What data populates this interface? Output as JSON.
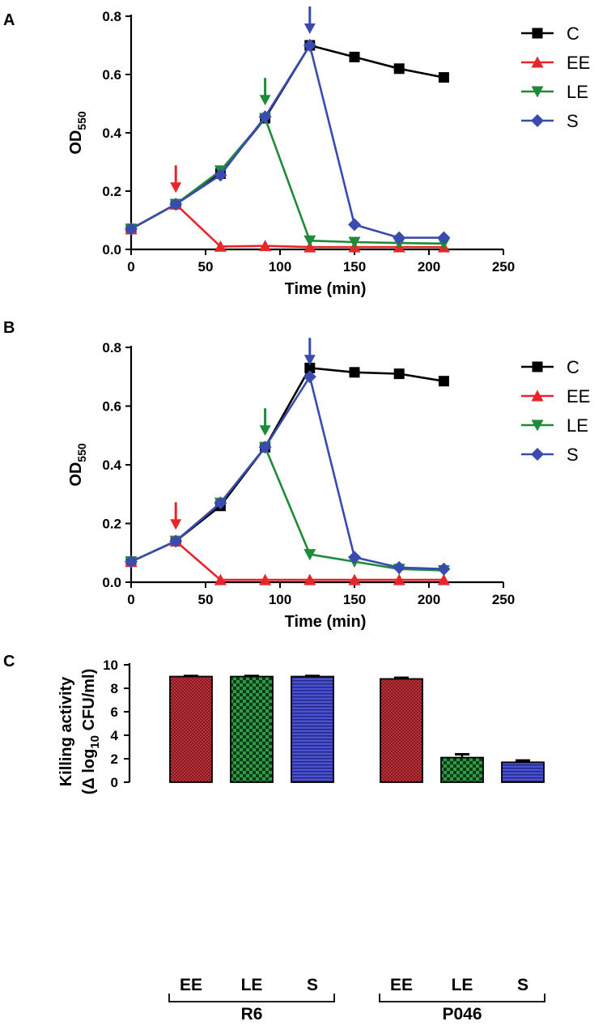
{
  "colors": {
    "C": "#000000",
    "EE": "#e8262a",
    "LE": "#1f8a3a",
    "S": "#3a4bb0",
    "bar_red": "#b82430",
    "bar_green": "#1e8a3c",
    "bar_blue": "#3a40c0"
  },
  "chart_data": [
    {
      "panel": "A",
      "type": "line",
      "xlabel": "Time (min)",
      "ylabel": "OD",
      "ylabel_sub": "550",
      "xlim": [
        0,
        250
      ],
      "ylim": [
        0,
        0.8
      ],
      "xticks": [
        0,
        50,
        100,
        150,
        200,
        250
      ],
      "yticks": [
        0.0,
        0.2,
        0.4,
        0.6,
        0.8
      ],
      "xtick_labels": [
        "0",
        "50",
        "100",
        "150",
        "200",
        "250"
      ],
      "ytick_labels": [
        "0.0",
        "0.2",
        "0.4",
        "0.6",
        "0.8"
      ],
      "legend_position": "top-right",
      "series": [
        {
          "name": "C",
          "marker": "square",
          "x": [
            0,
            30,
            60,
            90,
            120,
            150,
            180,
            210
          ],
          "values": [
            0.07,
            0.155,
            0.26,
            0.45,
            0.7,
            0.66,
            0.62,
            0.59
          ]
        },
        {
          "name": "EE",
          "marker": "triangle-up",
          "x": [
            0,
            30,
            60,
            90,
            120,
            150,
            180,
            210
          ],
          "values": [
            0.07,
            0.155,
            0.01,
            0.012,
            0.008,
            0.008,
            0.008,
            0.008
          ]
        },
        {
          "name": "LE",
          "marker": "triangle-down",
          "x": [
            0,
            30,
            60,
            90,
            120,
            150,
            180,
            210
          ],
          "values": [
            0.07,
            0.155,
            0.27,
            0.45,
            0.03,
            0.025,
            0.022,
            0.02
          ]
        },
        {
          "name": "S",
          "marker": "diamond",
          "x": [
            0,
            30,
            60,
            90,
            120,
            150,
            180,
            210
          ],
          "values": [
            0.07,
            0.155,
            0.255,
            0.455,
            0.7,
            0.085,
            0.04,
            0.04
          ]
        }
      ],
      "annotations": [
        {
          "type": "arrow",
          "series": "EE",
          "x": 30,
          "y": 0.155
        },
        {
          "type": "arrow",
          "series": "LE",
          "x": 90,
          "y": 0.455
        },
        {
          "type": "arrow",
          "series": "S",
          "x": 120,
          "y": 0.7
        }
      ]
    },
    {
      "panel": "B",
      "type": "line",
      "xlabel": "Time (min)",
      "ylabel": "OD",
      "ylabel_sub": "550",
      "xlim": [
        0,
        250
      ],
      "ylim": [
        0,
        0.8
      ],
      "xticks": [
        0,
        50,
        100,
        150,
        200,
        250
      ],
      "yticks": [
        0.0,
        0.2,
        0.4,
        0.6,
        0.8
      ],
      "xtick_labels": [
        "0",
        "50",
        "100",
        "150",
        "200",
        "250"
      ],
      "ytick_labels": [
        "0.0",
        "0.2",
        "0.4",
        "0.6",
        "0.8"
      ],
      "legend_position": "top-right",
      "series": [
        {
          "name": "C",
          "marker": "square",
          "x": [
            0,
            30,
            60,
            90,
            120,
            150,
            180,
            210
          ],
          "values": [
            0.07,
            0.14,
            0.26,
            0.46,
            0.73,
            0.715,
            0.71,
            0.685
          ]
        },
        {
          "name": "EE",
          "marker": "triangle-up",
          "x": [
            0,
            30,
            60,
            90,
            120,
            150,
            180,
            210
          ],
          "values": [
            0.07,
            0.14,
            0.008,
            0.008,
            0.008,
            0.008,
            0.008,
            0.008
          ]
        },
        {
          "name": "LE",
          "marker": "triangle-down",
          "x": [
            0,
            30,
            60,
            90,
            120,
            150,
            180,
            210
          ],
          "values": [
            0.07,
            0.14,
            0.27,
            0.46,
            0.095,
            0.07,
            0.045,
            0.04
          ]
        },
        {
          "name": "S",
          "marker": "diamond",
          "x": [
            0,
            30,
            60,
            90,
            120,
            150,
            180,
            210
          ],
          "values": [
            0.07,
            0.14,
            0.27,
            0.46,
            0.7,
            0.085,
            0.05,
            0.045
          ]
        }
      ],
      "annotations": [
        {
          "type": "arrow",
          "series": "EE",
          "x": 30,
          "y": 0.14
        },
        {
          "type": "arrow",
          "series": "LE",
          "x": 90,
          "y": 0.46
        },
        {
          "type": "arrow",
          "series": "S",
          "x": 120,
          "y": 0.7
        }
      ]
    },
    {
      "panel": "C",
      "type": "bar",
      "ylabel_line1": "Killing activity",
      "ylabel_line2_pre": "(Δ log",
      "ylabel_line2_sub": "10",
      "ylabel_line2_post": " CFU/ml)",
      "ylim": [
        0,
        10
      ],
      "yticks": [
        0,
        2,
        4,
        6,
        8,
        10
      ],
      "ytick_labels": [
        "0",
        "2",
        "4",
        "6",
        "8",
        "10"
      ],
      "groups": [
        {
          "name": "R6",
          "categories": [
            "EE",
            "LE",
            "S"
          ],
          "values": [
            9.0,
            9.0,
            9.0
          ],
          "errors": [
            0.05,
            0.05,
            0.05
          ]
        },
        {
          "name": "P046",
          "categories": [
            "EE",
            "LE",
            "S"
          ],
          "values": [
            8.8,
            2.1,
            1.7
          ],
          "errors": [
            0.1,
            0.28,
            0.15
          ]
        }
      ]
    }
  ]
}
